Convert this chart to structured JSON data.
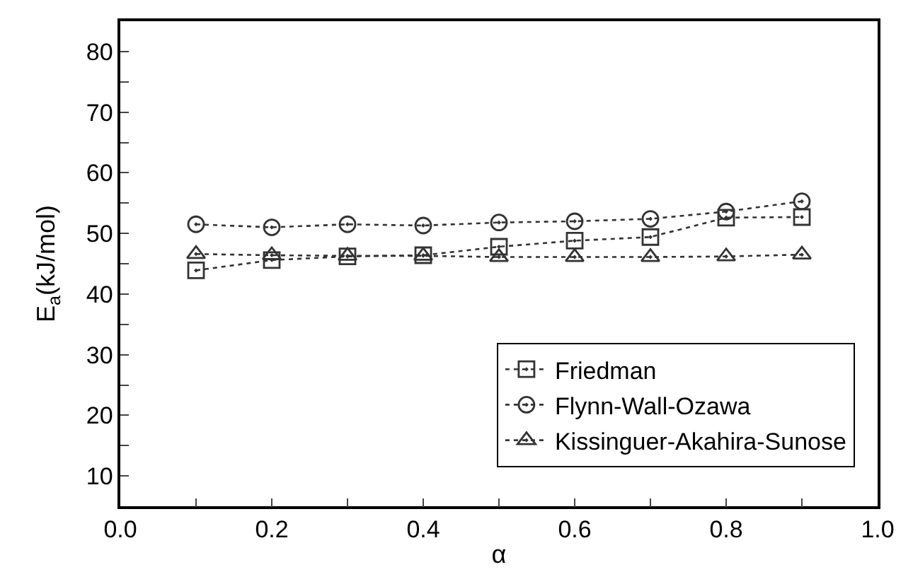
{
  "chart_data": {
    "type": "line",
    "xlabel": "α",
    "ylabel": "E$_{a}$(kJ/mol)",
    "x": [
      0.1,
      0.2,
      0.3,
      0.4,
      0.5,
      0.6,
      0.7,
      0.8,
      0.9
    ],
    "series": [
      {
        "name": "Friedman",
        "color": "#333333",
        "marker": "square",
        "values": [
          43.9,
          45.6,
          46.2,
          46.4,
          47.8,
          48.8,
          49.4,
          52.6,
          52.7
        ]
      },
      {
        "name": "Flynn-Wall-Ozawa",
        "color": "#333333",
        "marker": "circle",
        "values": [
          51.5,
          51.0,
          51.5,
          51.3,
          51.8,
          52.0,
          52.4,
          53.6,
          55.3
        ]
      },
      {
        "name": "Kissinguer-Akahira-Sunose",
        "color": "#333333",
        "marker": "triangle",
        "values": [
          46.6,
          46.4,
          46.3,
          46.3,
          46.1,
          46.1,
          46.1,
          46.2,
          46.5
        ]
      }
    ],
    "xlim": [
      0,
      1
    ],
    "xticks": [
      {
        "value": 0,
        "label": "0.0"
      },
      {
        "value": 0.1,
        "label": null
      },
      0.2,
      {
        "value": 0.3,
        "label": null
      },
      0.4,
      {
        "value": 0.5,
        "label": null
      },
      0.6,
      {
        "value": 0.7,
        "label": null
      },
      0.8,
      {
        "value": 0.9,
        "label": null
      },
      {
        "value": 1,
        "label": "1.0"
      }
    ],
    "ylim": [
      5,
      85
    ],
    "yticks": [
      {
        "value": 5,
        "label": null
      },
      10,
      {
        "value": 15,
        "label": null
      },
      20,
      {
        "value": 25,
        "label": null
      },
      30,
      {
        "value": 35,
        "label": null
      },
      40,
      {
        "value": 45,
        "label": null
      },
      50,
      {
        "value": 55,
        "label": null
      },
      60,
      {
        "value": 65,
        "label": null
      },
      70,
      {
        "value": 75,
        "label": null
      },
      80
    ],
    "grid": false,
    "legend": "bottom right",
    "line_style": "dotted"
  }
}
